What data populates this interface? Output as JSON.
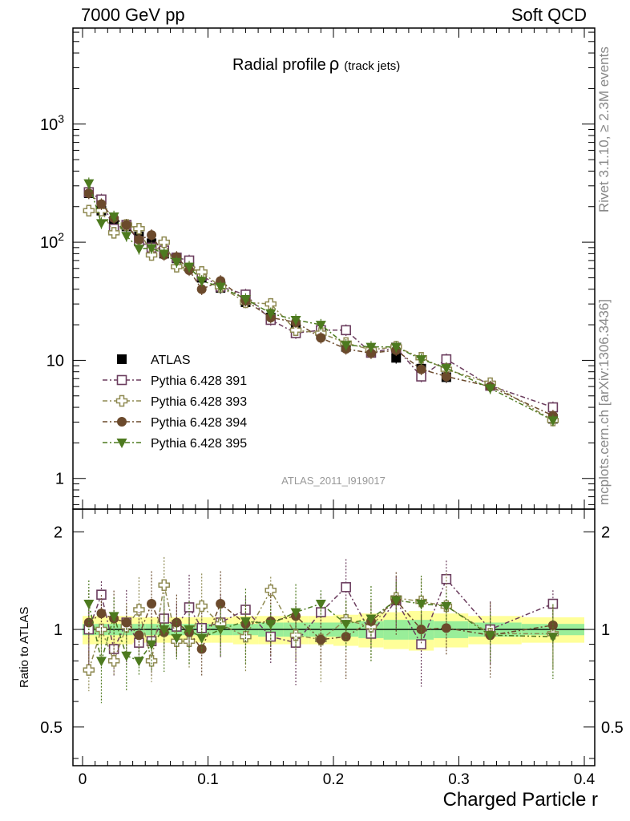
{
  "header": {
    "left": "7000 GeV pp",
    "right": "Soft QCD"
  },
  "side": {
    "rivet": "Rivet 3.1.10, ≥ 2.3M events",
    "mcplots": "mcplots.cern.ch [arXiv:1306.3436]"
  },
  "chart_data": {
    "type": "scatter",
    "title": "Radial profile",
    "title_symbol": "ρ",
    "title_suffix": "(track jets)",
    "analysis_tag": "ATLAS_2011_I919017",
    "xlabel": "Charged Particle r",
    "ylabel": "",
    "ratio_ylabel": "Ratio to ATLAS",
    "xlim": [
      0,
      0.4
    ],
    "ylim": [
      0.55,
      6500
    ],
    "ylog": true,
    "ratio_ylim": [
      0.38,
      2.35
    ],
    "ratio_ylog": true,
    "x_ticks": [
      "0",
      "0.1",
      "0.2",
      "0.3",
      "0.4"
    ],
    "y_ticks": [
      "1",
      "10",
      "10^2",
      "10^3"
    ],
    "ratio_ticks": [
      "0.5",
      "1",
      "2"
    ],
    "legend_position": "middle-left",
    "x": [
      0.005,
      0.015,
      0.025,
      0.035,
      0.045,
      0.055,
      0.065,
      0.075,
      0.085,
      0.095,
      0.11,
      0.13,
      0.15,
      0.17,
      0.19,
      0.21,
      0.23,
      0.25,
      0.27,
      0.29,
      0.325,
      0.375
    ],
    "series": [
      {
        "name": "ATLAS",
        "color": "#000000",
        "marker": "square-filled",
        "values": [
          260,
          185,
          150,
          136,
          112,
          98,
          80,
          73,
          62,
          50,
          41,
          31,
          23,
          19.5,
          16.5,
          13,
          12,
          10.5,
          8.5,
          7.2,
          6.1,
          3.2
        ],
        "ratio_band_green": [
          0.04,
          0.04,
          0.04,
          0.04,
          0.04,
          0.04,
          0.04,
          0.04,
          0.04,
          0.04,
          0.04,
          0.04,
          0.05,
          0.05,
          0.05,
          0.05,
          0.06,
          0.07,
          0.07,
          0.06,
          0.05,
          0.04
        ],
        "ratio_band_yellow": [
          0.1,
          0.1,
          0.1,
          0.1,
          0.09,
          0.09,
          0.09,
          0.09,
          0.09,
          0.09,
          0.09,
          0.1,
          0.1,
          0.1,
          0.1,
          0.11,
          0.12,
          0.13,
          0.14,
          0.12,
          0.1,
          0.09
        ]
      },
      {
        "name": "Pythia 6.428 391",
        "color": "#6b3d5e",
        "marker": "square-open",
        "values": [
          265,
          230,
          130,
          140,
          102,
          90,
          85,
          74,
          70,
          52,
          42,
          36,
          22,
          17,
          18,
          18,
          11.6,
          12.8,
          7.3,
          10.2,
          6.1,
          4.0
        ],
        "ratio": [
          1.0,
          1.28,
          0.87,
          1.05,
          0.91,
          0.92,
          1.08,
          1.02,
          1.17,
          1.01,
          1.05,
          1.15,
          0.95,
          0.91,
          1.13,
          1.35,
          0.97,
          1.23,
          0.9,
          1.43,
          1.0,
          1.2
        ]
      },
      {
        "name": "Pythia 6.428 393",
        "color": "#8f8a52",
        "marker": "cross-open",
        "values": [
          185,
          185,
          120,
          140,
          130,
          78,
          100,
          62,
          60,
          56,
          42,
          31,
          30,
          18,
          17,
          14,
          12.3,
          13,
          10.5,
          8.4,
          6.4,
          3.1
        ],
        "ratio": [
          0.75,
          1.0,
          0.8,
          1.02,
          1.15,
          0.8,
          1.37,
          0.92,
          0.92,
          1.18,
          1.04,
          0.95,
          1.32,
          0.96,
          0.93,
          1.07,
          1.02,
          1.25,
          1.22,
          1.18,
          0.97,
          0.97
        ]
      },
      {
        "name": "Pythia 6.428 394",
        "color": "#6b4a2c",
        "marker": "circle-filled",
        "values": [
          260,
          210,
          160,
          140,
          105,
          115,
          78,
          75,
          58,
          40,
          47,
          32,
          23,
          21,
          15.5,
          12.5,
          11.5,
          12.2,
          8.4,
          7.3,
          6.0,
          3.4
        ],
        "ratio": [
          1.05,
          1.12,
          1.08,
          1.05,
          0.96,
          1.2,
          0.98,
          1.05,
          0.98,
          0.87,
          1.2,
          1.04,
          1.06,
          1.1,
          0.93,
          0.95,
          1.06,
          1.23,
          1.0,
          1.01,
          0.96,
          1.03
        ]
      },
      {
        "name": "Pythia 6.428 395",
        "color": "#4d7a1f",
        "marker": "triangle-down-filled",
        "values": [
          315,
          145,
          165,
          113,
          88,
          89,
          80,
          68,
          62,
          47,
          42,
          33,
          25,
          22,
          20,
          13.5,
          13,
          13,
          10.2,
          8.6,
          5.8,
          3.1
        ],
        "ratio": [
          1.2,
          0.8,
          1.1,
          0.83,
          0.8,
          0.9,
          1.0,
          0.94,
          1.0,
          0.94,
          1.0,
          1.06,
          1.04,
          1.13,
          1.2,
          1.04,
          1.08,
          1.23,
          1.2,
          1.18,
          0.96,
          0.95
        ]
      }
    ]
  }
}
